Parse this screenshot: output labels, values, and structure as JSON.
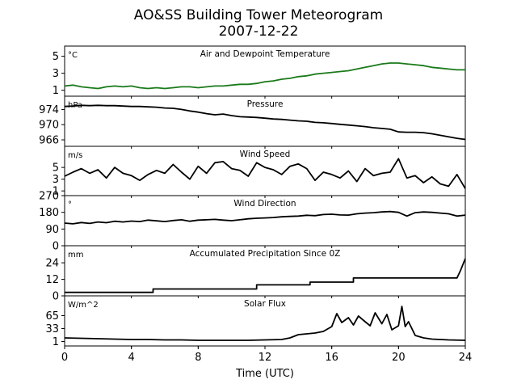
{
  "title": "AO&SS Building Tower Meteorogram",
  "subtitle": "2007-12-22",
  "xlabel": "Time (UTC)",
  "chart_data": [
    {
      "type": "line",
      "panel_title": "Air and Dewpoint Temperature",
      "unit": "°C",
      "color": "#1a7a1a",
      "ylim": [
        0.3,
        6.2
      ],
      "yticks": [
        1,
        3,
        5
      ],
      "xlim": [
        0,
        24
      ],
      "series": [
        {
          "x": [
            0,
            0.5,
            1,
            1.5,
            2,
            2.5,
            3,
            3.5,
            4,
            4.5,
            5,
            5.5,
            6,
            6.5,
            7,
            7.5,
            8,
            8.5,
            9,
            9.5,
            10,
            10.5,
            11,
            11.5,
            12,
            12.5,
            13,
            13.5,
            14,
            14.5,
            15,
            15.5,
            16,
            16.5,
            17,
            17.5,
            18,
            18.5,
            19,
            19.5,
            20,
            20.5,
            21,
            21.5,
            22,
            22.5,
            23,
            23.5,
            24
          ],
          "y": [
            1.5,
            1.6,
            1.4,
            1.3,
            1.2,
            1.4,
            1.5,
            1.4,
            1.5,
            1.3,
            1.2,
            1.3,
            1.2,
            1.3,
            1.4,
            1.4,
            1.3,
            1.4,
            1.5,
            1.5,
            1.6,
            1.7,
            1.7,
            1.8,
            2.0,
            2.1,
            2.3,
            2.4,
            2.6,
            2.7,
            2.9,
            3.0,
            3.1,
            3.2,
            3.3,
            3.5,
            3.7,
            3.9,
            4.1,
            4.2,
            4.2,
            4.1,
            4.0,
            3.9,
            3.7,
            3.6,
            3.5,
            3.4,
            3.4
          ]
        }
      ]
    },
    {
      "type": "line",
      "panel_title": "Pressure",
      "unit": "hPa",
      "color": "#000000",
      "ylim": [
        964.3,
        977.5
      ],
      "yticks": [
        966,
        970,
        974
      ],
      "xlim": [
        0,
        24
      ],
      "series": [
        {
          "x": [
            0,
            0.5,
            1,
            1.5,
            2,
            2.5,
            3,
            3.5,
            4,
            4.5,
            5,
            5.5,
            6,
            6.5,
            7,
            7.5,
            8,
            8.5,
            9,
            9.5,
            10,
            10.5,
            11,
            11.5,
            12,
            12.5,
            13,
            13.5,
            14,
            14.5,
            15,
            15.5,
            16,
            16.5,
            17,
            17.5,
            18,
            18.5,
            19,
            19.5,
            20,
            20.5,
            21,
            21.5,
            22,
            22.5,
            23,
            23.5,
            24
          ],
          "y": [
            974.8,
            974.9,
            975.1,
            975.0,
            975.1,
            975.0,
            975.0,
            974.9,
            974.8,
            974.8,
            974.7,
            974.6,
            974.4,
            974.3,
            974.0,
            973.6,
            973.3,
            972.9,
            972.6,
            972.8,
            972.4,
            972.1,
            972.0,
            971.9,
            971.7,
            971.5,
            971.4,
            971.2,
            971.0,
            970.9,
            970.6,
            970.5,
            970.3,
            970.1,
            969.9,
            969.7,
            969.5,
            969.2,
            969.0,
            968.8,
            968.1,
            968.0,
            968.0,
            967.9,
            967.6,
            967.2,
            966.8,
            966.4,
            966.1
          ]
        }
      ]
    },
    {
      "type": "line",
      "panel_title": "Wind Speed",
      "unit": "m/s",
      "color": "#000000",
      "ylim": [
        0.2,
        8.6
      ],
      "yticks": [
        1,
        3,
        5
      ],
      "xlim": [
        0,
        24
      ],
      "series": [
        {
          "x": [
            0,
            0.5,
            1,
            1.5,
            2,
            2.5,
            3,
            3.5,
            4,
            4.5,
            5,
            5.5,
            6,
            6.5,
            7,
            7.5,
            8,
            8.5,
            9,
            9.5,
            10,
            10.5,
            11,
            11.5,
            12,
            12.5,
            13,
            13.5,
            14,
            14.5,
            15,
            15.5,
            16,
            16.5,
            17,
            17.5,
            18,
            18.5,
            19,
            19.5,
            20,
            20.5,
            21,
            21.5,
            22,
            22.5,
            23,
            23.5,
            24
          ],
          "y": [
            3.5,
            4.2,
            4.8,
            4.0,
            4.6,
            3.2,
            5.0,
            4.0,
            3.6,
            2.8,
            3.8,
            4.5,
            4.0,
            5.5,
            4.2,
            3.0,
            5.2,
            4.0,
            5.8,
            6.0,
            4.8,
            4.5,
            3.5,
            5.8,
            5.0,
            4.6,
            3.8,
            5.2,
            5.6,
            4.8,
            2.8,
            4.2,
            3.8,
            3.2,
            4.4,
            2.6,
            4.8,
            3.6,
            4.0,
            4.2,
            6.5,
            3.2,
            3.6,
            2.4,
            3.4,
            2.2,
            1.8,
            3.8,
            1.4
          ]
        }
      ]
    },
    {
      "type": "line",
      "panel_title": "Wind Direction",
      "unit": "°",
      "color": "#000000",
      "ylim": [
        0,
        270
      ],
      "yticks": [
        0,
        90,
        180,
        270
      ],
      "xlim": [
        0,
        24
      ],
      "series": [
        {
          "x": [
            0,
            0.5,
            1,
            1.5,
            2,
            2.5,
            3,
            3.5,
            4,
            4.5,
            5,
            5.5,
            6,
            6.5,
            7,
            7.5,
            8,
            8.5,
            9,
            9.5,
            10,
            10.5,
            11,
            11.5,
            12,
            12.5,
            13,
            13.5,
            14,
            14.5,
            15,
            15.5,
            16,
            16.5,
            17,
            17.5,
            18,
            18.5,
            19,
            19.5,
            20,
            20.5,
            21,
            21.5,
            22,
            22.5,
            23,
            23.5,
            24
          ],
          "y": [
            122,
            118,
            125,
            120,
            128,
            124,
            132,
            128,
            133,
            130,
            138,
            134,
            130,
            136,
            140,
            132,
            138,
            140,
            142,
            138,
            135,
            140,
            145,
            148,
            150,
            152,
            156,
            158,
            160,
            164,
            162,
            168,
            170,
            166,
            165,
            172,
            176,
            178,
            182,
            184,
            180,
            160,
            178,
            182,
            180,
            176,
            172,
            160,
            165
          ]
        }
      ]
    },
    {
      "type": "line",
      "panel_title": "Accumulated Precipitation Since 0Z",
      "unit": "mm",
      "color": "#000000",
      "ylim": [
        0,
        36.4
      ],
      "yticks": [
        0,
        12,
        24
      ],
      "xlim": [
        0,
        24
      ],
      "series": [
        {
          "x": [
            0,
            5.3,
            5.3,
            11.5,
            11.5,
            14.7,
            14.7,
            17.3,
            17.3,
            23.5,
            23.7,
            23.9,
            24
          ],
          "y": [
            2.5,
            2.5,
            5,
            5,
            8,
            8,
            10,
            10,
            13,
            13,
            18,
            24,
            27
          ]
        }
      ]
    },
    {
      "type": "line",
      "panel_title": "Solar Flux",
      "unit": "W/m^2",
      "color": "#000000",
      "ylim": [
        -10,
        114
      ],
      "yticks": [
        1,
        33,
        65
      ],
      "xlim": [
        0,
        24
      ],
      "series": [
        {
          "x": [
            0,
            1,
            2,
            3,
            4,
            5,
            6,
            7,
            8,
            9,
            10,
            11,
            12,
            13,
            13.5,
            14,
            14.5,
            15,
            15.5,
            16,
            16.3,
            16.6,
            17,
            17.3,
            17.6,
            18,
            18.3,
            18.6,
            19,
            19.3,
            19.6,
            20,
            20.2,
            20.4,
            20.6,
            21,
            21.5,
            22,
            23,
            24
          ],
          "y": [
            10,
            9,
            8,
            7,
            6,
            6,
            5,
            5,
            4,
            4,
            4,
            4,
            5,
            6,
            10,
            18,
            20,
            22,
            26,
            38,
            70,
            48,
            60,
            42,
            64,
            50,
            40,
            72,
            45,
            68,
            30,
            40,
            88,
            38,
            50,
            16,
            10,
            7,
            5,
            4
          ]
        }
      ]
    }
  ],
  "x_axis": {
    "xlim": [
      0,
      24
    ],
    "xticks": [
      0,
      4,
      8,
      12,
      16,
      20,
      24
    ]
  }
}
